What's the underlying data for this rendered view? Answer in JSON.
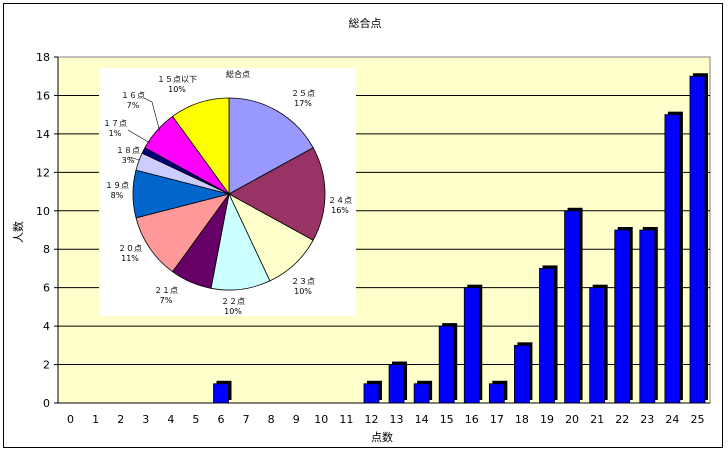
{
  "chart_data": [
    {
      "type": "bar",
      "title": "総合点",
      "xlabel": "点数",
      "ylabel": "人数",
      "ylim": [
        0,
        18
      ],
      "yticks": [
        0,
        2,
        4,
        6,
        8,
        10,
        12,
        14,
        16,
        18
      ],
      "grid": true,
      "categories": [
        "0",
        "1",
        "2",
        "3",
        "4",
        "5",
        "6",
        "7",
        "8",
        "9",
        "10",
        "11",
        "12",
        "13",
        "14",
        "15",
        "16",
        "17",
        "18",
        "19",
        "20",
        "21",
        "22",
        "23",
        "24",
        "25"
      ],
      "values": [
        0,
        0,
        0,
        0,
        0,
        0,
        1,
        0,
        0,
        0,
        0,
        0,
        1,
        2,
        1,
        4,
        6,
        1,
        3,
        7,
        10,
        6,
        9,
        9,
        15,
        17
      ],
      "colors": {
        "bar": "#0000ff",
        "plot_bg": "#ffffcc",
        "bar_shadow": "#000000"
      }
    },
    {
      "type": "pie",
      "title": "総合点",
      "slices": [
        {
          "label": "２５点",
          "pct": "17%",
          "value": 17,
          "color": "#9999ff"
        },
        {
          "label": "２４点",
          "pct": "16%",
          "value": 16,
          "color": "#993366"
        },
        {
          "label": "２３点",
          "pct": "10%",
          "value": 10,
          "color": "#ffffcc"
        },
        {
          "label": "２２点",
          "pct": "10%",
          "value": 10,
          "color": "#ccffff"
        },
        {
          "label": "２１点",
          "pct": "7%",
          "value": 7,
          "color": "#660066"
        },
        {
          "label": "２０点",
          "pct": "11%",
          "value": 11,
          "color": "#ff9999"
        },
        {
          "label": "１９点",
          "pct": "8%",
          "value": 8,
          "color": "#0066cc"
        },
        {
          "label": "１８点",
          "pct": "3%",
          "value": 3,
          "color": "#ccccff"
        },
        {
          "label": "１７点",
          "pct": "1%",
          "value": 1,
          "color": "#000080"
        },
        {
          "label": "１６点",
          "pct": "7%",
          "value": 7,
          "color": "#ff00ff"
        },
        {
          "label": "１５点以下",
          "pct": "10%",
          "value": 10,
          "color": "#ffff00"
        }
      ]
    }
  ]
}
